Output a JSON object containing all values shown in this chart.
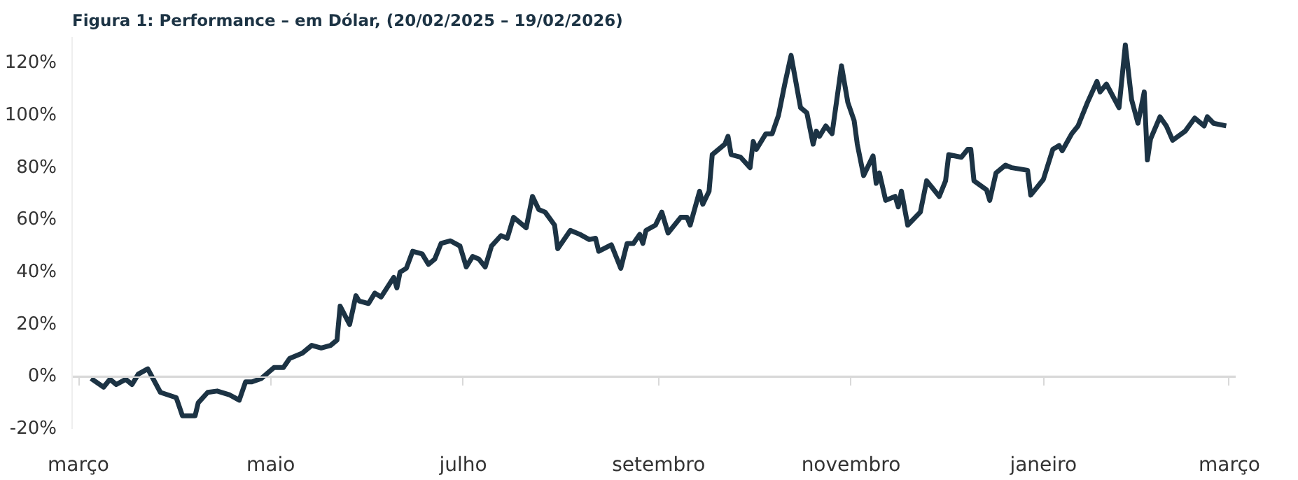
{
  "chart_data": {
    "type": "line",
    "title": "Figura 1: Performance – em Dólar, (20/02/2025 – 19/02/2026)",
    "x": [
      "2025-03-05",
      "2025-03-09",
      "2025-03-11",
      "2025-03-13",
      "2025-03-16",
      "2025-03-18",
      "2025-03-20",
      "2025-03-23",
      "2025-03-27",
      "2025-04-01",
      "2025-04-03",
      "2025-04-07",
      "2025-04-08",
      "2025-04-11",
      "2025-04-14",
      "2025-04-18",
      "2025-04-21",
      "2025-04-23",
      "2025-04-25",
      "2025-04-28",
      "2025-05-02",
      "2025-05-05",
      "2025-05-07",
      "2025-05-11",
      "2025-05-14",
      "2025-05-17",
      "2025-05-20",
      "2025-05-22",
      "2025-05-23",
      "2025-05-26",
      "2025-05-28",
      "2025-05-29",
      "2025-06-01",
      "2025-06-03",
      "2025-06-05",
      "2025-06-09",
      "2025-06-10",
      "2025-06-11",
      "2025-06-13",
      "2025-06-15",
      "2025-06-18",
      "2025-06-20",
      "2025-06-22",
      "2025-06-24",
      "2025-06-27",
      "2025-06-30",
      "2025-07-01",
      "2025-07-02",
      "2025-07-04",
      "2025-07-06",
      "2025-07-08",
      "2025-07-10",
      "2025-07-13",
      "2025-07-15",
      "2025-07-17",
      "2025-07-21",
      "2025-07-23",
      "2025-07-25",
      "2025-07-27",
      "2025-07-30",
      "2025-07-31",
      "2025-08-04",
      "2025-08-07",
      "2025-08-10",
      "2025-08-12",
      "2025-08-13",
      "2025-08-17",
      "2025-08-20",
      "2025-08-22",
      "2025-08-24",
      "2025-08-26",
      "2025-08-27",
      "2025-08-28",
      "2025-08-31",
      "2025-09-02",
      "2025-09-04",
      "2025-09-08",
      "2025-09-10",
      "2025-09-11",
      "2025-09-14",
      "2025-09-15",
      "2025-09-17",
      "2025-09-18",
      "2025-09-22",
      "2025-09-23",
      "2025-09-24",
      "2025-09-27",
      "2025-09-30",
      "2025-10-01",
      "2025-10-02",
      "2025-10-05",
      "2025-10-07",
      "2025-10-09",
      "2025-10-11",
      "2025-10-13",
      "2025-10-16",
      "2025-10-18",
      "2025-10-20",
      "2025-10-21",
      "2025-10-22",
      "2025-10-24",
      "2025-10-26",
      "2025-10-29",
      "2025-10-31",
      "2025-11-02",
      "2025-11-03",
      "2025-11-05",
      "2025-11-08",
      "2025-11-09",
      "2025-11-10",
      "2025-11-12",
      "2025-11-15",
      "2025-11-16",
      "2025-11-17",
      "2025-11-19",
      "2025-11-23",
      "2025-11-25",
      "2025-11-29",
      "2025-12-01",
      "2025-12-02",
      "2025-12-06",
      "2025-12-08",
      "2025-12-09",
      "2025-12-10",
      "2025-12-14",
      "2025-12-15",
      "2025-12-17",
      "2025-12-20",
      "2025-12-22",
      "2025-12-27",
      "2025-12-28",
      "2026-01-01",
      "2026-01-04",
      "2026-01-06",
      "2026-01-07",
      "2026-01-10",
      "2026-01-12",
      "2026-01-13",
      "2026-01-15",
      "2026-01-18",
      "2026-01-19",
      "2026-01-21",
      "2026-01-23",
      "2026-01-25",
      "2026-01-27",
      "2026-01-29",
      "2026-01-31",
      "2026-02-02",
      "2026-02-03",
      "2026-02-04",
      "2026-02-07",
      "2026-02-09",
      "2026-02-11",
      "2026-02-15",
      "2026-02-18",
      "2026-02-21",
      "2026-02-22",
      "2026-02-24",
      "2026-02-28"
    ],
    "series": [
      {
        "color": "#1c3344",
        "values": [
          -0.7,
          -4,
          -1,
          -3,
          -1,
          -3,
          1,
          3,
          -6,
          -8,
          -15,
          -15,
          -10,
          -6,
          -5.5,
          -7,
          -9,
          -2,
          -2,
          -0.7,
          3.5,
          3.5,
          7,
          9,
          12,
          11,
          12,
          14,
          27,
          20,
          31,
          29,
          28,
          32,
          30.5,
          38,
          34,
          40,
          41.5,
          48,
          47,
          43,
          45,
          51,
          52,
          50,
          46,
          42,
          46,
          45,
          42,
          50,
          54,
          53,
          61,
          57,
          69,
          64,
          63,
          58,
          49,
          56,
          54.5,
          52.5,
          53,
          48,
          50.5,
          41.5,
          51,
          51,
          54.5,
          51,
          56,
          58,
          63,
          55,
          61,
          61,
          58,
          71,
          66,
          71,
          85,
          89,
          92,
          85,
          84,
          80,
          90,
          87,
          93,
          93,
          100,
          112,
          123,
          103,
          101,
          89,
          94,
          92,
          96,
          93,
          119,
          105,
          98,
          89,
          77,
          84.5,
          74,
          78,
          67.5,
          69,
          65,
          71,
          58,
          63,
          75,
          69,
          75,
          85,
          84,
          87,
          87,
          75,
          71.5,
          67.5,
          78,
          81,
          80,
          79,
          69.5,
          75.5,
          87,
          88.5,
          86.5,
          93,
          96,
          99,
          105,
          113,
          109,
          112,
          107.5,
          103,
          127,
          106,
          97,
          109,
          83,
          91,
          99.5,
          96,
          90.5,
          94,
          99,
          96,
          99.5,
          97,
          96
        ]
      }
    ],
    "xlim": [
      "2025-02-27",
      "2026-03-03"
    ],
    "xticks": [
      {
        "value": "2025-03-01",
        "label": "março"
      },
      {
        "value": "2025-05-01",
        "label": "maio"
      },
      {
        "value": "2025-07-01",
        "label": "julho"
      },
      {
        "value": "2025-09-01",
        "label": "setembro"
      },
      {
        "value": "2025-11-01",
        "label": "novembro"
      },
      {
        "value": "2026-01-01",
        "label": "janeiro"
      },
      {
        "value": "2026-03-01",
        "label": "março"
      }
    ],
    "ylim": [
      -20,
      130
    ],
    "yticks": [
      {
        "value": -20,
        "label": "-20%"
      },
      {
        "value": 0,
        "label": "0%"
      },
      {
        "value": 20,
        "label": "20%"
      },
      {
        "value": 40,
        "label": "40%"
      },
      {
        "value": 60,
        "label": "60%"
      },
      {
        "value": 80,
        "label": "80%"
      },
      {
        "value": 100,
        "label": "100%"
      },
      {
        "value": 120,
        "label": "120%"
      }
    ],
    "ref_lines": [
      {
        "axis": "y",
        "value": 0,
        "color": "#d9d9d9"
      }
    ],
    "grid": false,
    "marker": "none",
    "line_style": "solid"
  }
}
